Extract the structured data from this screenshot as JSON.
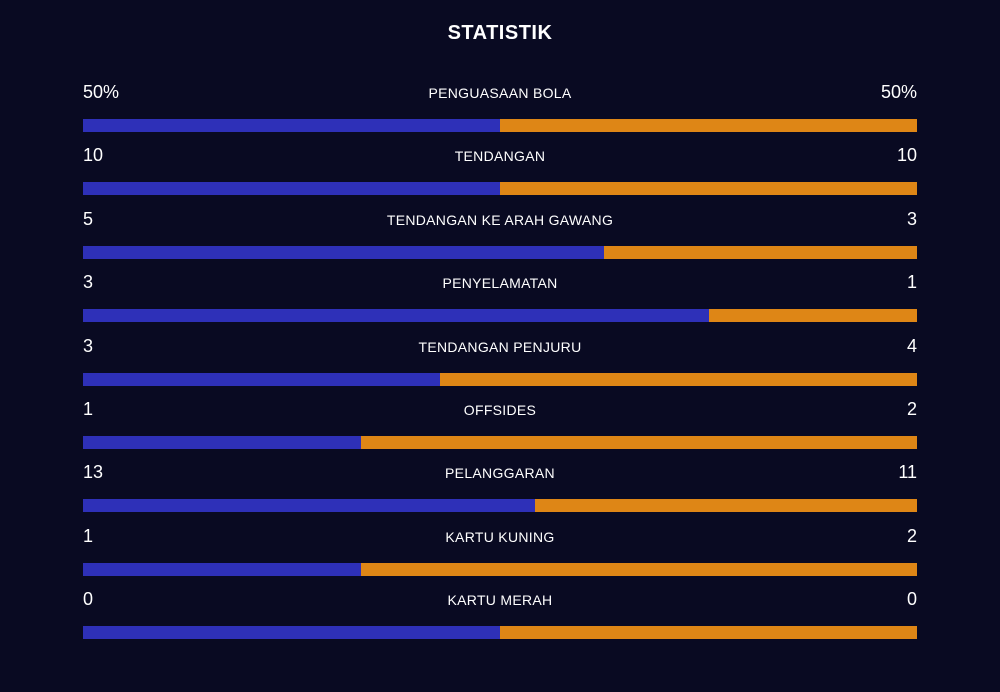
{
  "title": "STATISTIK",
  "colors": {
    "background": "#090a22",
    "home_bar": "#2e30b8",
    "away_bar": "#de8616"
  },
  "stats": [
    {
      "label": "PENGUASAAN BOLA",
      "home": "50%",
      "away": "50%",
      "home_share": 0.5
    },
    {
      "label": "TENDANGAN",
      "home": "10",
      "away": "10",
      "home_share": 0.5
    },
    {
      "label": "TENDANGAN KE ARAH GAWANG",
      "home": "5",
      "away": "3",
      "home_share": 0.625
    },
    {
      "label": "PENYELAMATAN",
      "home": "3",
      "away": "1",
      "home_share": 0.75
    },
    {
      "label": "TENDANGAN PENJURU",
      "home": "3",
      "away": "4",
      "home_share": 0.4286
    },
    {
      "label": "OFFSIDES",
      "home": "1",
      "away": "2",
      "home_share": 0.3333
    },
    {
      "label": "PELANGGARAN",
      "home": "13",
      "away": "11",
      "home_share": 0.5417
    },
    {
      "label": "KARTU KUNING",
      "home": "1",
      "away": "2",
      "home_share": 0.3333
    },
    {
      "label": "KARTU MERAH",
      "home": "0",
      "away": "0",
      "home_share": 0.5
    }
  ]
}
